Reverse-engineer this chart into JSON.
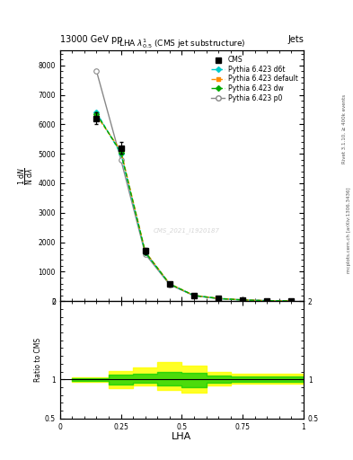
{
  "title_top": "13000 GeV pp",
  "title_right": "Jets",
  "plot_title": "LHA $\\lambda^{1}_{0.5}$ (CMS jet substructure)",
  "xlabel": "LHA",
  "ylabel_parts": [
    "$\\frac{1}{\\mathrm{N}}\\frac{\\mathrm{d}N}{\\mathrm{d}\\lambda}$"
  ],
  "ylabel_ratio": "Ratio to CMS",
  "watermark": "CMS_2021_I1920187",
  "right_label1": "Rivet 3.1.10, ≥ 400k events",
  "right_label2": "mcplots.cern.ch [arXiv:1306.3436]",
  "x_lha": [
    0.05,
    0.15,
    0.25,
    0.35,
    0.45,
    0.55,
    0.65,
    0.75,
    0.85,
    0.95
  ],
  "cms_y": [
    0,
    6200,
    5200,
    1700,
    600,
    200,
    100,
    50,
    20,
    10
  ],
  "cms_yerr": [
    0,
    200,
    200,
    100,
    50,
    20,
    10,
    5,
    5,
    5
  ],
  "d6t_y": [
    0,
    6400,
    5000,
    1650,
    580,
    190,
    90,
    40,
    15,
    8
  ],
  "default_y": [
    0,
    6300,
    5100,
    1680,
    590,
    195,
    95,
    42,
    16,
    8
  ],
  "dw_y": [
    0,
    6350,
    5050,
    1660,
    585,
    192,
    92,
    41,
    15,
    8
  ],
  "p0_y": [
    0,
    7800,
    4800,
    1600,
    560,
    185,
    85,
    38,
    14,
    7
  ],
  "x_ratio": [
    0.05,
    0.15,
    0.25,
    0.35,
    0.45,
    0.55,
    0.65,
    0.75,
    0.85,
    0.95
  ],
  "ratio_yellow_lo": [
    0.97,
    0.97,
    0.89,
    0.92,
    0.87,
    0.83,
    0.92,
    0.95,
    0.95,
    0.95
  ],
  "ratio_yellow_hi": [
    1.03,
    1.03,
    1.11,
    1.15,
    1.22,
    1.18,
    1.1,
    1.07,
    1.07,
    1.07
  ],
  "ratio_green_lo": [
    0.98,
    0.98,
    0.94,
    0.96,
    0.92,
    0.9,
    0.96,
    0.97,
    0.97,
    0.97
  ],
  "ratio_green_hi": [
    1.02,
    1.02,
    1.06,
    1.07,
    1.1,
    1.09,
    1.05,
    1.04,
    1.04,
    1.04
  ],
  "ylim_main": [
    0,
    8500
  ],
  "ylim_ratio": [
    0.5,
    2.0
  ],
  "yticks_main": [
    0,
    1000,
    2000,
    3000,
    4000,
    5000,
    6000,
    7000,
    8000
  ],
  "yticks_ratio": [
    0.5,
    1.0,
    2.0
  ],
  "color_d6t": "#00CCCC",
  "color_default": "#FF8C00",
  "color_dw": "#00AA00",
  "color_p0": "#888888",
  "color_cms": "#000000",
  "color_green_band": "#00CC00",
  "color_yellow_band": "#FFFF00"
}
